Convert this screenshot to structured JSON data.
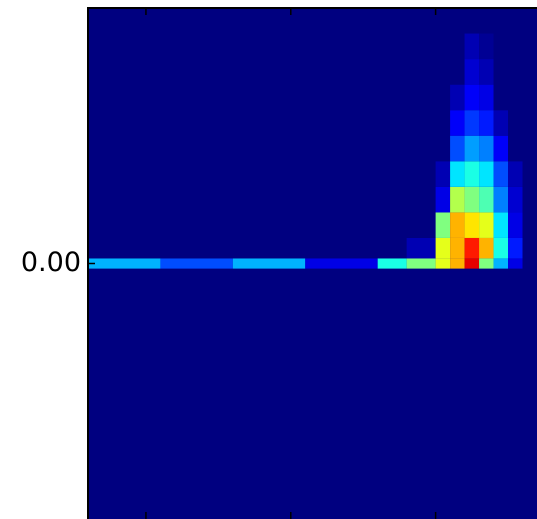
{
  "chart_data": {
    "type": "heatmap",
    "colormap": "jet",
    "xlim": [
      0,
      3.1
    ],
    "ylim": [
      -1,
      1
    ],
    "xticks": [
      0.4,
      1.4,
      2.4
    ],
    "yticks": [
      {
        "value": 0,
        "label": "0.00"
      }
    ],
    "x_edges": [
      0,
      0.5,
      1.0,
      1.5,
      2.0,
      2.2,
      2.4,
      2.5,
      2.6,
      2.7,
      2.8,
      2.9,
      3.0,
      3.1
    ],
    "y_edges": [
      -0.02,
      0.02,
      0.1,
      0.2,
      0.3,
      0.4,
      0.5,
      0.6,
      0.7,
      0.8,
      0.9
    ],
    "z": [
      [
        0.3,
        0.2,
        0.3,
        0.1,
        0.4,
        0.5,
        0.6,
        0.7,
        0.9,
        0.5,
        0.3,
        0.1,
        0
      ],
      [
        0,
        0,
        0,
        0,
        0,
        0.05,
        0.6,
        0.7,
        0.85,
        0.7,
        0.4,
        0.15,
        0
      ],
      [
        0,
        0,
        0,
        0,
        0,
        0,
        0.5,
        0.7,
        0.65,
        0.6,
        0.35,
        0.1,
        0
      ],
      [
        0,
        0,
        0,
        0,
        0,
        0,
        0.1,
        0.55,
        0.5,
        0.45,
        0.25,
        0.08,
        0
      ],
      [
        0,
        0,
        0,
        0,
        0,
        0,
        0.05,
        0.35,
        0.4,
        0.35,
        0.2,
        0.05,
        0
      ],
      [
        0,
        0,
        0,
        0,
        0,
        0,
        0,
        0.2,
        0.28,
        0.25,
        0.12,
        0,
        0
      ],
      [
        0,
        0,
        0,
        0,
        0,
        0,
        0,
        0.12,
        0.18,
        0.15,
        0.05,
        0,
        0
      ],
      [
        0,
        0,
        0,
        0,
        0,
        0,
        0,
        0.05,
        0.12,
        0.1,
        0,
        0,
        0
      ],
      [
        0,
        0,
        0,
        0,
        0,
        0,
        0,
        0,
        0.08,
        0.05,
        0,
        0,
        0
      ],
      [
        0,
        0,
        0,
        0,
        0,
        0,
        0,
        0,
        0.05,
        0.02,
        0,
        0,
        0
      ]
    ]
  }
}
